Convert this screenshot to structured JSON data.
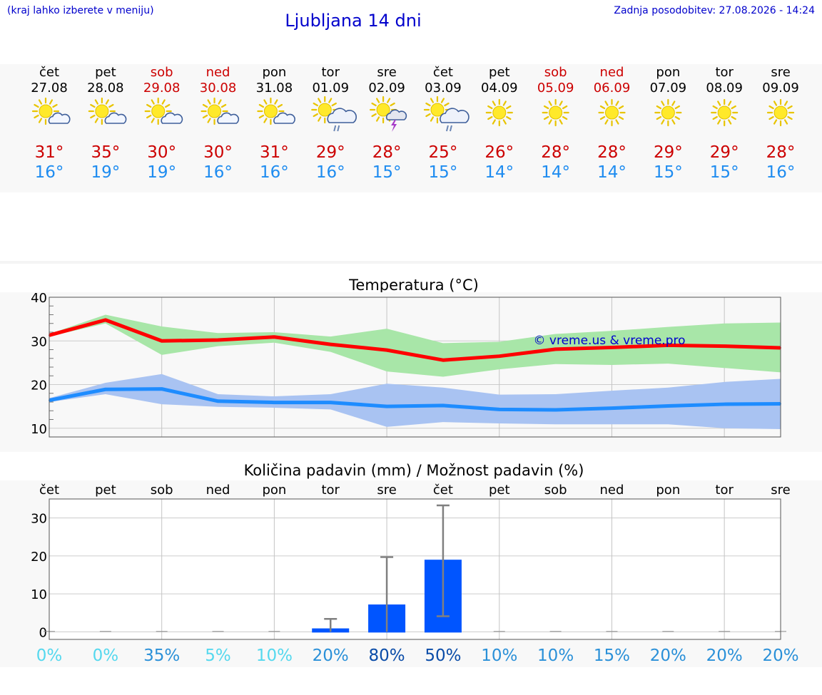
{
  "header": {
    "note": "(kraj lahko izberete v meniju)",
    "title": "Ljubljana 14 dni",
    "updated": "Zadnja posodobitev: 27.08.2026 - 14:24"
  },
  "colors": {
    "weekend": "#cc0000",
    "weekday": "#000000",
    "max_temp": "#cc0000",
    "min_temp": "#1e8cf0",
    "max_line": "#ff0000",
    "min_line": "#1e8cff",
    "max_band": "#a8e6a8",
    "min_band": "#a9c3f2",
    "rain_bar": "#0055ff",
    "rain_err": "#808080"
  },
  "days": [
    {
      "day": "čet",
      "date": "27.08",
      "weekend": false,
      "icon": "sun-cloud-icon",
      "max": "31°",
      "min": "16°"
    },
    {
      "day": "pet",
      "date": "28.08",
      "weekend": false,
      "icon": "sun-cloud-icon",
      "max": "35°",
      "min": "19°"
    },
    {
      "day": "sob",
      "date": "29.08",
      "weekend": true,
      "icon": "sun-cloud-icon",
      "max": "30°",
      "min": "19°"
    },
    {
      "day": "ned",
      "date": "30.08",
      "weekend": true,
      "icon": "sun-cloud-icon",
      "max": "30°",
      "min": "16°"
    },
    {
      "day": "pon",
      "date": "31.08",
      "weekend": false,
      "icon": "sun-cloud-icon",
      "max": "31°",
      "min": "16°"
    },
    {
      "day": "tor",
      "date": "01.09",
      "weekend": false,
      "icon": "sun-rain-icon",
      "max": "29°",
      "min": "16°"
    },
    {
      "day": "sre",
      "date": "02.09",
      "weekend": false,
      "icon": "sun-thunder-icon",
      "max": "28°",
      "min": "15°"
    },
    {
      "day": "čet",
      "date": "03.09",
      "weekend": false,
      "icon": "sun-rain-icon",
      "max": "25°",
      "min": "15°"
    },
    {
      "day": "pet",
      "date": "04.09",
      "weekend": false,
      "icon": "sun-icon",
      "max": "26°",
      "min": "14°"
    },
    {
      "day": "sob",
      "date": "05.09",
      "weekend": true,
      "icon": "sun-icon",
      "max": "28°",
      "min": "14°"
    },
    {
      "day": "ned",
      "date": "06.09",
      "weekend": true,
      "icon": "sun-icon",
      "max": "28°",
      "min": "14°"
    },
    {
      "day": "pon",
      "date": "07.09",
      "weekend": false,
      "icon": "sun-icon",
      "max": "29°",
      "min": "15°"
    },
    {
      "day": "tor",
      "date": "08.09",
      "weekend": false,
      "icon": "sun-icon",
      "max": "29°",
      "min": "15°"
    },
    {
      "day": "sre",
      "date": "09.09",
      "weekend": false,
      "icon": "sun-icon",
      "max": "28°",
      "min": "16°"
    }
  ],
  "chart_data": [
    {
      "type": "line",
      "title": "Temperatura (°C)",
      "ylim": [
        8,
        40
      ],
      "yticks": [
        10,
        20,
        30,
        40
      ],
      "grid": true,
      "watermark": "© vreme.us & vreme.pro",
      "x": [
        "27.08",
        "28.08",
        "29.08",
        "30.08",
        "31.08",
        "01.09",
        "02.09",
        "03.09",
        "04.09",
        "05.09",
        "06.09",
        "07.09",
        "08.09",
        "09.09"
      ],
      "series": [
        {
          "values": [
            31.3,
            34.8,
            30.0,
            30.2,
            30.9,
            29.2,
            27.9,
            25.6,
            26.5,
            28.1,
            28.5,
            29.0,
            28.8,
            28.4
          ],
          "band_low": [
            31.0,
            34.0,
            26.8,
            28.8,
            29.6,
            27.5,
            23.0,
            21.8,
            23.5,
            24.7,
            24.5,
            24.8,
            23.8,
            22.8
          ],
          "band_high": [
            31.6,
            36.0,
            33.3,
            31.8,
            32.0,
            31.0,
            32.8,
            29.5,
            29.8,
            31.6,
            32.3,
            33.2,
            34.0,
            34.2
          ]
        },
        {
          "values": [
            16.4,
            18.9,
            19.0,
            16.2,
            15.9,
            15.9,
            15.0,
            15.2,
            14.3,
            14.2,
            14.6,
            15.1,
            15.5,
            15.6
          ],
          "band_low": [
            16.0,
            17.8,
            15.5,
            14.9,
            14.7,
            14.3,
            10.3,
            11.4,
            11.1,
            10.9,
            10.9,
            10.9,
            10.0,
            9.8
          ],
          "band_high": [
            16.9,
            20.4,
            22.4,
            17.8,
            17.3,
            17.8,
            20.2,
            19.3,
            17.7,
            17.8,
            18.6,
            19.3,
            20.6,
            21.3
          ]
        }
      ]
    },
    {
      "type": "bar",
      "title": "Količina padavin (mm) / Možnost padavin (%)",
      "ylim": [
        -2,
        35
      ],
      "yticks": [
        0,
        10,
        20,
        30
      ],
      "grid": true,
      "categories": [
        "čet",
        "pet",
        "sob",
        "ned",
        "pon",
        "tor",
        "sre",
        "čet",
        "pet",
        "sob",
        "ned",
        "pon",
        "tor",
        "sre"
      ],
      "values": [
        0,
        0,
        0,
        0,
        0,
        0.9,
        7.2,
        19.0,
        0,
        0,
        0,
        0,
        0,
        0
      ],
      "error_low": [
        0,
        0,
        0,
        0,
        0,
        0,
        0,
        4.1,
        0,
        0,
        0,
        0,
        0,
        0
      ],
      "error_high": [
        0,
        0,
        0,
        0,
        0,
        3.4,
        19.7,
        33.3,
        0,
        0,
        0,
        0,
        0,
        0
      ],
      "probability": [
        "0%",
        "0%",
        "35%",
        "5%",
        "10%",
        "20%",
        "80%",
        "50%",
        "10%",
        "10%",
        "15%",
        "20%",
        "20%",
        "20%"
      ],
      "probability_colors": [
        "#55d8ee",
        "#55d8ee",
        "#2a90d8",
        "#55d8ee",
        "#55d8ee",
        "#2a90d8",
        "#0a4ca8",
        "#0a4ca8",
        "#2a90d8",
        "#2a90d8",
        "#2a90d8",
        "#2a90d8",
        "#2a90d8",
        "#2a90d8"
      ]
    }
  ]
}
